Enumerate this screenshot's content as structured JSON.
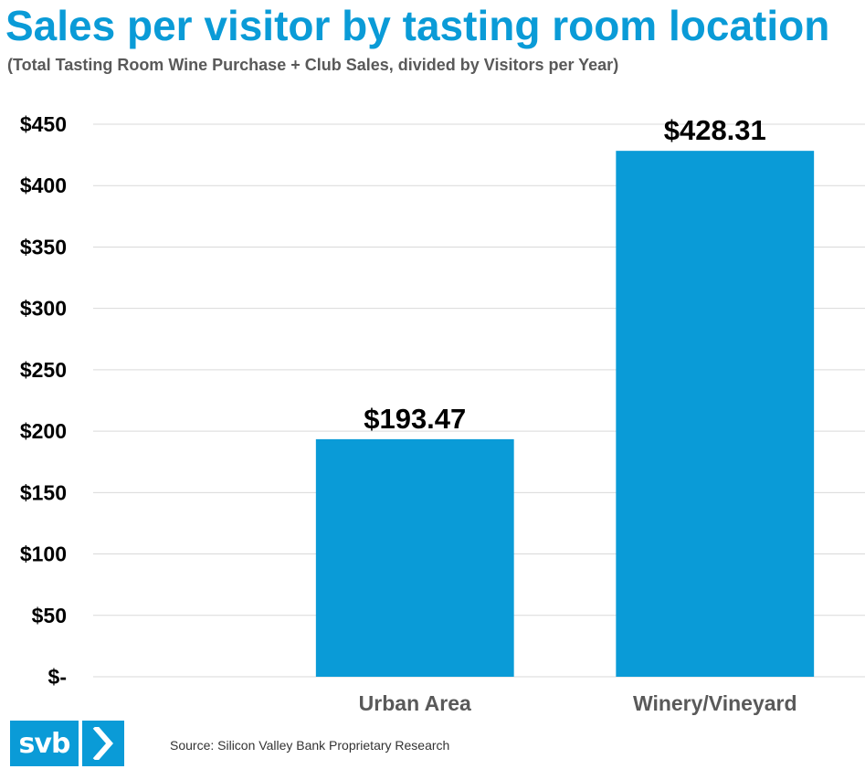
{
  "chart_data": {
    "type": "bar",
    "title": "Sales per visitor by tasting room location",
    "subtitle": "(Total Tasting Room Wine Purchase + Club Sales, divided by Visitors per Year)",
    "categories": [
      "Urban Area",
      "Winery/Vineyard"
    ],
    "values": [
      193.47,
      428.31
    ],
    "data_labels": [
      "$193.47",
      "$428.31"
    ],
    "ylim": [
      0,
      450
    ],
    "y_ticks": [
      0,
      50,
      100,
      150,
      200,
      250,
      300,
      350,
      400,
      450
    ],
    "y_tick_labels": [
      "$-",
      "$50",
      "$100",
      "$150",
      "$200",
      "$250",
      "$300",
      "$350",
      "$400",
      "$450"
    ],
    "grid": true,
    "bar_color": "#0a9bd7",
    "grid_color": "#d9d9d9"
  },
  "footer": {
    "logo_text": "svb",
    "source": "Source: Silicon Valley Bank Proprietary Research"
  },
  "colors": {
    "title": "#0a9bd7",
    "subtitle": "#595959",
    "brand": "#0a9bd7"
  }
}
